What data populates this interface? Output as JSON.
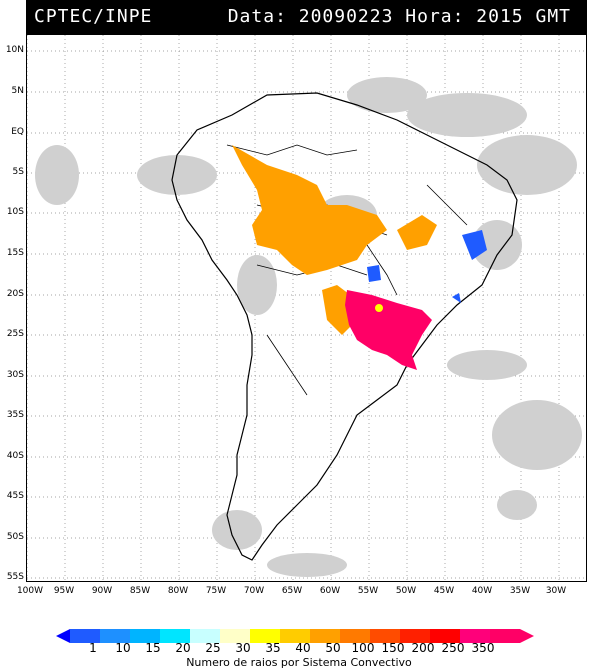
{
  "header": {
    "left": "CPTEC/INPE",
    "right": "Data: 20090223 Hora: 2015 GMT"
  },
  "latitude_labels": [
    "10N",
    "5N",
    "EQ",
    "5S",
    "10S",
    "15S",
    "20S",
    "25S",
    "30S",
    "35S",
    "40S",
    "45S",
    "50S",
    "55S"
  ],
  "longitude_labels": [
    "100W",
    "95W",
    "90W",
    "85W",
    "80W",
    "75W",
    "70W",
    "65W",
    "60W",
    "55W",
    "50W",
    "45W",
    "40W",
    "35W",
    "30W"
  ],
  "colorbar": {
    "labels": [
      "1",
      "10",
      "15",
      "20",
      "25",
      "30",
      "35",
      "40",
      "50",
      "100",
      "150",
      "200",
      "250",
      "350"
    ],
    "colors": [
      "#0000ff",
      "#1f5bff",
      "#1e90ff",
      "#00b4ff",
      "#00e5ff",
      "#c8ffff",
      "#ffffc8",
      "#ffff00",
      "#ffcc00",
      "#ffa000",
      "#ff7a00",
      "#ff4c00",
      "#ff0000",
      "#ff007a",
      "#ff0066"
    ],
    "caption": "Numero de raios por Sistema Convectivo"
  }
}
